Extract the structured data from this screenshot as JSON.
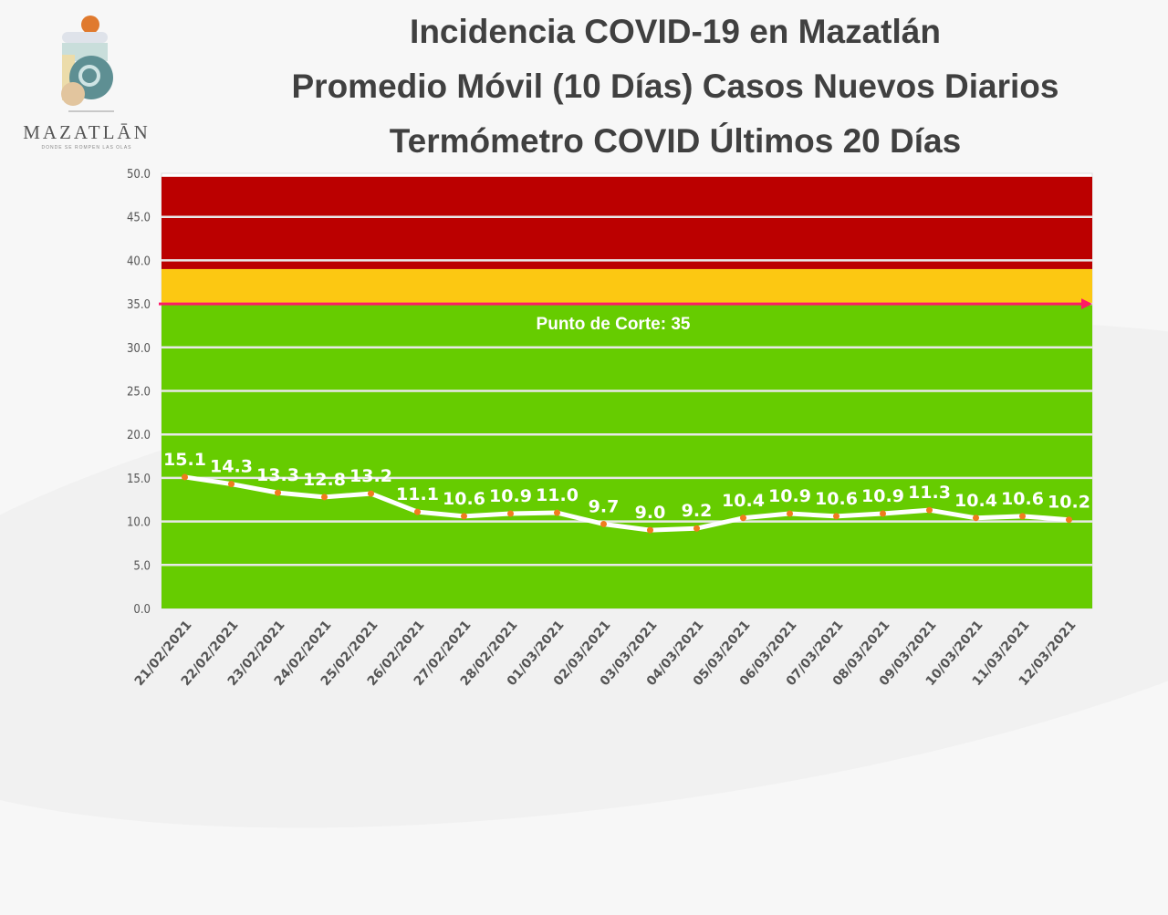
{
  "logo": {
    "word": "MAZATLĀN",
    "tagline": "DONDE SE ROMPEN LAS OLAS"
  },
  "titles": [
    "Incidencia COVID-19 en Mazatlán",
    "Promedio Móvil (10 Días) Casos Nuevos Diarios",
    "Termómetro COVID Últimos 20 Días"
  ],
  "chart_data": {
    "type": "line",
    "title": "Incidencia COVID-19 en Mazatlán / Promedio Móvil (10 Días) Casos Nuevos Diarios / Termómetro COVID Últimos 20 Días",
    "categories": [
      "21/02/2021",
      "22/02/2021",
      "23/02/2021",
      "24/02/2021",
      "25/02/2021",
      "26/02/2021",
      "27/02/2021",
      "28/02/2021",
      "01/03/2021",
      "02/03/2021",
      "03/03/2021",
      "04/03/2021",
      "05/03/2021",
      "06/03/2021",
      "07/03/2021",
      "08/03/2021",
      "09/03/2021",
      "10/03/2021",
      "11/03/2021",
      "12/03/2021"
    ],
    "values": [
      15.1,
      14.3,
      13.3,
      12.8,
      13.2,
      11.1,
      10.6,
      10.9,
      11.0,
      9.7,
      9.0,
      9.2,
      10.4,
      10.9,
      10.6,
      10.9,
      11.3,
      10.4,
      10.6,
      10.2
    ],
    "ylim": [
      0,
      50
    ],
    "yticks": [
      "0.0",
      "5.0",
      "10.0",
      "15.0",
      "20.0",
      "25.0",
      "30.0",
      "35.0",
      "40.0",
      "45.0",
      "50.0"
    ],
    "grid": true,
    "bands": [
      {
        "from": 0,
        "to": 35,
        "color": "#66cc00"
      },
      {
        "from": 35,
        "to": 39,
        "color": "#fcc812"
      },
      {
        "from": 39,
        "to": 49.6,
        "color": "#bb0000"
      }
    ],
    "threshold": {
      "value": 35,
      "label": "Punto de Corte: 35",
      "color": "#ff1a66"
    },
    "line_color": "#ffffff",
    "marker_color": "#f07c1e"
  }
}
